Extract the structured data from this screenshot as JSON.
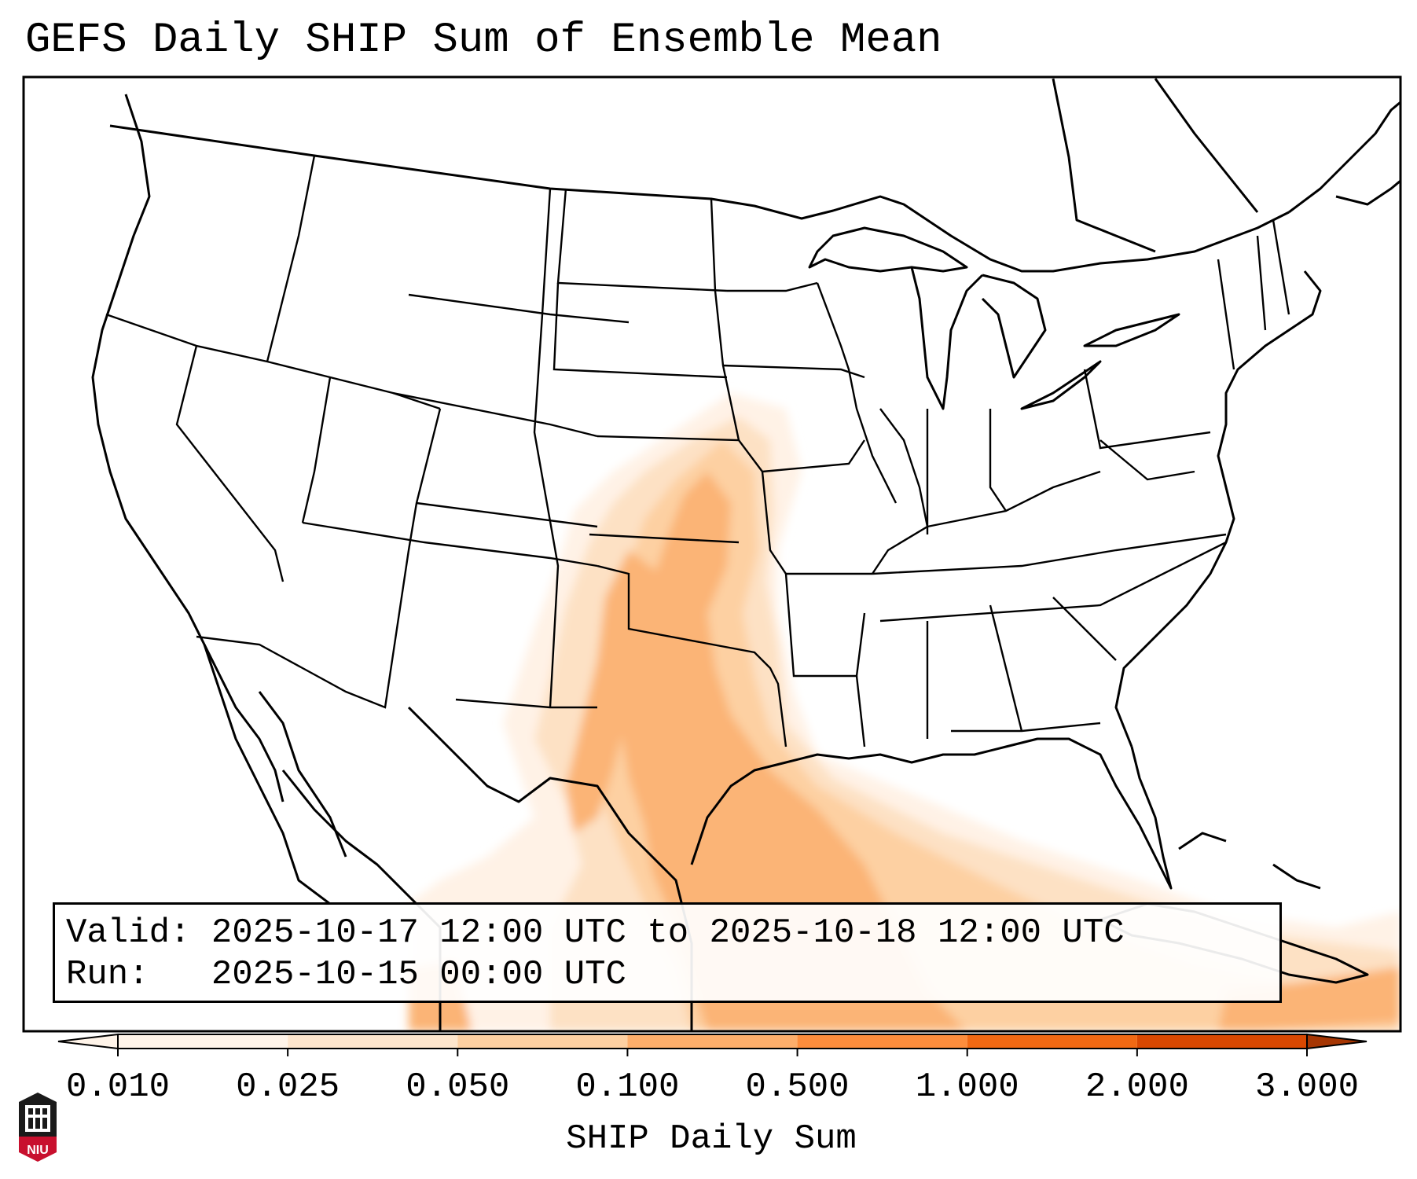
{
  "title": "GEFS Daily SHIP Sum of Ensemble Mean",
  "info": {
    "valid_label": "Valid:",
    "valid_value": "2025-10-17 12:00 UTC to 2025-10-18 12:00 UTC",
    "run_label": "Run:",
    "run_value": "2025-10-15 00:00 UTC"
  },
  "colorbar": {
    "label": "SHIP Daily Sum",
    "ticks": [
      "0.010",
      "0.025",
      "0.050",
      "0.100",
      "0.500",
      "1.000",
      "2.000",
      "3.000"
    ],
    "colors": [
      "#fff4e9",
      "#fee6cd",
      "#fdd0a2",
      "#fdae6b",
      "#fd8d3c",
      "#f16913",
      "#d94801",
      "#a63603"
    ],
    "extend": "both"
  },
  "logo": {
    "text": "NIU",
    "color": "#c8102e"
  },
  "field_colors": {
    "light": "#fff2e6",
    "pale": "#fde1c4",
    "mid": "#fdd0a2",
    "strong": "#fbb476"
  }
}
